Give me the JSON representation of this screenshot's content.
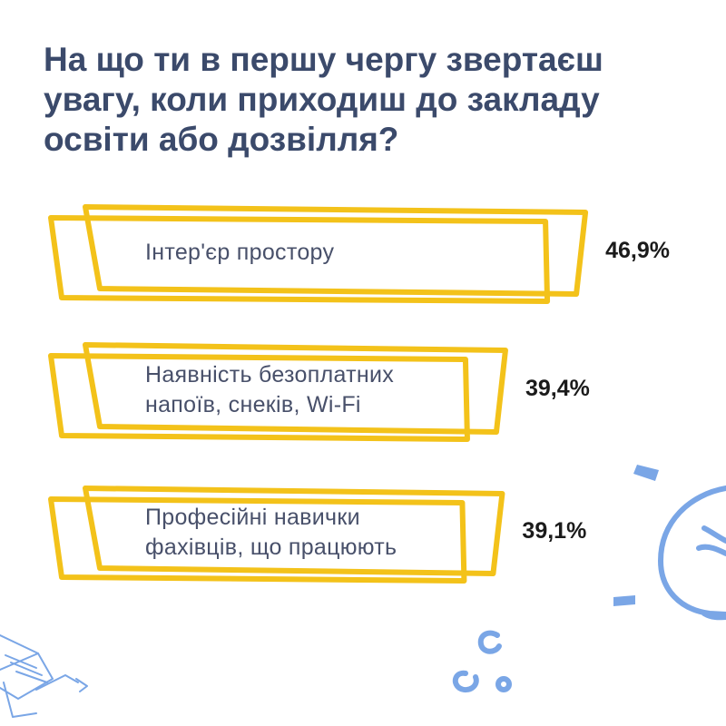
{
  "title_lines": [
    "На що ти в першу чергу звертаєш",
    "увагу, коли приходиш до закладу",
    "освіти або дозвілля?"
  ],
  "colors": {
    "title": "#3b4a6b",
    "bar_outline": "#f3c21a",
    "bar_label": "#48506a",
    "value": "#1b1b1b",
    "doodle": "#7aa6e6"
  },
  "chart_data": {
    "type": "bar",
    "orientation": "horizontal",
    "unit": "%",
    "items": [
      {
        "lines": [
          "Інтер'єр простору"
        ],
        "value": 46.9,
        "value_label": "46,9%"
      },
      {
        "lines": [
          "Наявність безоплатних",
          "напоїв, снеків, Wi-Fi"
        ],
        "value": 39.4,
        "value_label": "39,4%"
      },
      {
        "lines": [
          "Професійні навички",
          "фахівців, що працюють"
        ],
        "value": 39.1,
        "value_label": "39,1%"
      }
    ]
  },
  "decorations": [
    "lightbulb-doodle",
    "graduation-cap-doodle",
    "bubbles-doodle"
  ]
}
